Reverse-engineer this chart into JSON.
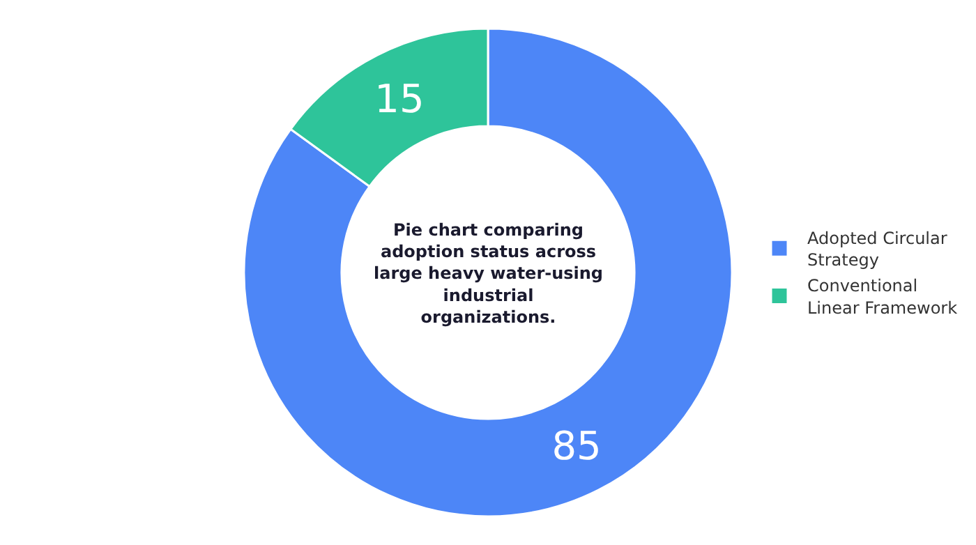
{
  "chart_data": {
    "type": "donut",
    "title": "Pie chart comparing adoption status across large heavy water-using industrial organizations.",
    "categories": [
      "Adopted Circular Strategy",
      "Conventional Linear Framework"
    ],
    "values": [
      85,
      15
    ],
    "colors": [
      "#4d86f7",
      "#2ec49a"
    ],
    "data_labels": true,
    "legend": "right"
  }
}
